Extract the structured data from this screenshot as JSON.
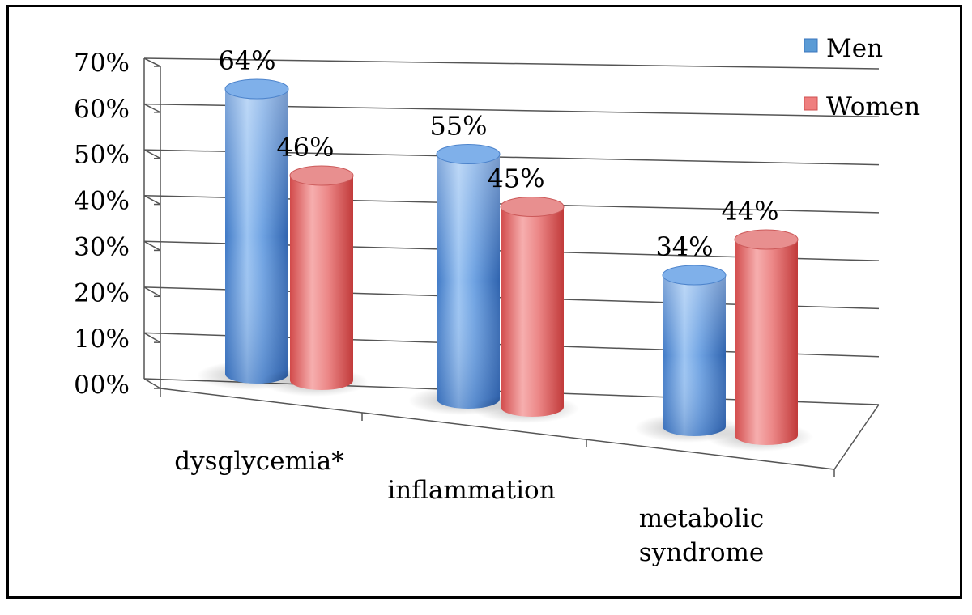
{
  "chart_data": {
    "type": "bar",
    "bar_shape": "3d-cylinder",
    "categories": [
      "dysglycemia*",
      "inflammation",
      "metabolic syndrome"
    ],
    "category_label_lines": [
      [
        "dysglycemia*"
      ],
      [
        "inflammation"
      ],
      [
        "metabolic",
        "syndrome"
      ]
    ],
    "series": [
      {
        "name": "Men",
        "values": [
          64,
          55,
          34
        ],
        "labels": [
          "64%",
          "55%",
          "34%"
        ],
        "color": "#5b9bd5"
      },
      {
        "name": "Women",
        "values": [
          46,
          45,
          44
        ],
        "labels": [
          "46%",
          "45%",
          "44%"
        ],
        "color": "#e06666"
      }
    ],
    "ylim": [
      0,
      70
    ],
    "y_ticks": [
      0,
      10,
      20,
      30,
      40,
      50,
      60,
      70
    ],
    "y_tick_labels": [
      "00%",
      "10%",
      "20%",
      "30%",
      "40%",
      "50%",
      "60%",
      "70%"
    ],
    "grid": true,
    "legend_position": "top-right",
    "title": "",
    "xlabel": "",
    "ylabel": ""
  }
}
